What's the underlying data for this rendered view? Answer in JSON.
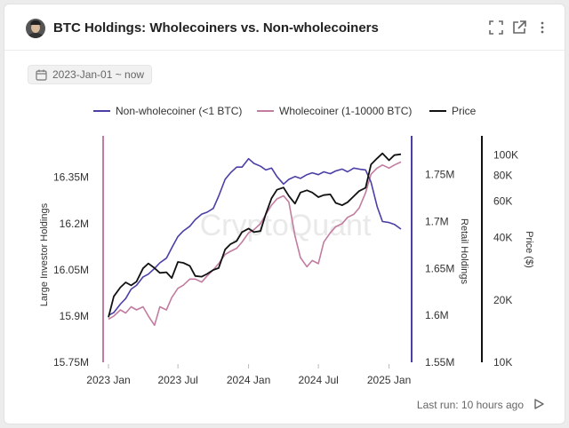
{
  "header": {
    "title": "BTC Holdings: Wholecoiners vs. Non-wholecoiners",
    "icons": [
      "expand-icon",
      "open-external-icon",
      "more-vertical-icon"
    ]
  },
  "filter": {
    "date_range": "2023-Jan-01 ~ now"
  },
  "footer": {
    "last_run": "Last run: 10 hours ago"
  },
  "colors": {
    "non_wholecoiner": "#4a3fa6",
    "wholecoiner": "#c27ca0",
    "price": "#111111"
  },
  "chart_data": {
    "type": "line",
    "legend": {
      "placement": "top",
      "entries": [
        "Non-wholecoiner (<1 BTC)",
        "Wholecoiner (1-10000 BTC)",
        "Price"
      ]
    },
    "watermark": "CryptoQuant",
    "x_ticks": [
      "2023 Jan",
      "2023 Jul",
      "2024 Jan",
      "2024 Jul",
      "2025 Jan"
    ],
    "x_range": [
      "2023-01-01",
      "2025-02-15"
    ],
    "axes": {
      "left": {
        "label": "Large Investor Holdings",
        "range": [
          15.75,
          16.45
        ],
        "unit": "M",
        "ticks": [
          "15.75M",
          "15.9M",
          "16.05M",
          "16.2M",
          "16.35M"
        ]
      },
      "right1": {
        "label": "Retail Holdings",
        "range": [
          1.55,
          1.78
        ],
        "unit": "M",
        "ticks": [
          "1.55M",
          "1.6M",
          "1.65M",
          "1.7M",
          "1.75M"
        ]
      },
      "right2": {
        "label": "Price ($)",
        "scale": "log",
        "range": [
          10000,
          110000
        ],
        "ticks": [
          "10K",
          "20K",
          "40K",
          "60K",
          "80K",
          "100K"
        ]
      }
    },
    "series": [
      {
        "name": "Non-wholecoiner (<1 BTC)",
        "axis": "right1",
        "points": [
          [
            "2023-01-01",
            1.6
          ],
          [
            "2023-01-15",
            1.603
          ],
          [
            "2023-02-01",
            1.612
          ],
          [
            "2023-02-15",
            1.618
          ],
          [
            "2023-03-01",
            1.628
          ],
          [
            "2023-03-15",
            1.632
          ],
          [
            "2023-04-01",
            1.641
          ],
          [
            "2023-04-15",
            1.644
          ],
          [
            "2023-05-01",
            1.65
          ],
          [
            "2023-05-15",
            1.656
          ],
          [
            "2023-06-01",
            1.661
          ],
          [
            "2023-06-15",
            1.672
          ],
          [
            "2023-07-01",
            1.684
          ],
          [
            "2023-07-15",
            1.69
          ],
          [
            "2023-08-01",
            1.695
          ],
          [
            "2023-08-15",
            1.702
          ],
          [
            "2023-09-01",
            1.708
          ],
          [
            "2023-09-15",
            1.71
          ],
          [
            "2023-10-01",
            1.714
          ],
          [
            "2023-10-15",
            1.727
          ],
          [
            "2023-11-01",
            1.745
          ],
          [
            "2023-11-15",
            1.752
          ],
          [
            "2023-12-01",
            1.758
          ],
          [
            "2023-12-15",
            1.758
          ],
          [
            "2024-01-01",
            1.767
          ],
          [
            "2024-01-15",
            1.762
          ],
          [
            "2024-02-01",
            1.759
          ],
          [
            "2024-02-15",
            1.755
          ],
          [
            "2024-03-01",
            1.757
          ],
          [
            "2024-03-15",
            1.748
          ],
          [
            "2024-04-01",
            1.74
          ],
          [
            "2024-04-15",
            1.745
          ],
          [
            "2024-05-01",
            1.748
          ],
          [
            "2024-05-15",
            1.746
          ],
          [
            "2024-06-01",
            1.75
          ],
          [
            "2024-06-15",
            1.752
          ],
          [
            "2024-07-01",
            1.75
          ],
          [
            "2024-07-15",
            1.753
          ],
          [
            "2024-08-01",
            1.751
          ],
          [
            "2024-08-15",
            1.754
          ],
          [
            "2024-09-01",
            1.756
          ],
          [
            "2024-09-15",
            1.753
          ],
          [
            "2024-10-01",
            1.757
          ],
          [
            "2024-10-15",
            1.756
          ],
          [
            "2024-11-01",
            1.755
          ],
          [
            "2024-11-15",
            1.742
          ],
          [
            "2024-12-01",
            1.716
          ],
          [
            "2024-12-15",
            1.7
          ],
          [
            "2025-01-01",
            1.699
          ],
          [
            "2025-01-15",
            1.697
          ],
          [
            "2025-02-01",
            1.692
          ]
        ]
      },
      {
        "name": "Wholecoiner (1-10000 BTC)",
        "axis": "left",
        "points": [
          [
            "2023-01-01",
            15.89
          ],
          [
            "2023-01-15",
            15.9
          ],
          [
            "2023-02-01",
            15.92
          ],
          [
            "2023-02-15",
            15.91
          ],
          [
            "2023-03-01",
            15.93
          ],
          [
            "2023-03-15",
            15.92
          ],
          [
            "2023-04-01",
            15.93
          ],
          [
            "2023-04-15",
            15.9
          ],
          [
            "2023-05-01",
            15.87
          ],
          [
            "2023-05-15",
            15.93
          ],
          [
            "2023-06-01",
            15.92
          ],
          [
            "2023-06-15",
            15.96
          ],
          [
            "2023-07-01",
            15.99
          ],
          [
            "2023-07-15",
            16.0
          ],
          [
            "2023-08-01",
            16.02
          ],
          [
            "2023-08-15",
            16.02
          ],
          [
            "2023-09-01",
            16.01
          ],
          [
            "2023-09-15",
            16.03
          ],
          [
            "2023-10-01",
            16.05
          ],
          [
            "2023-10-15",
            16.07
          ],
          [
            "2023-11-01",
            16.1
          ],
          [
            "2023-11-15",
            16.11
          ],
          [
            "2023-12-01",
            16.12
          ],
          [
            "2023-12-15",
            16.14
          ],
          [
            "2024-01-01",
            16.17
          ],
          [
            "2024-01-15",
            16.18
          ],
          [
            "2024-02-01",
            16.2
          ],
          [
            "2024-02-15",
            16.23
          ],
          [
            "2024-03-01",
            16.26
          ],
          [
            "2024-03-15",
            16.28
          ],
          [
            "2024-04-01",
            16.29
          ],
          [
            "2024-04-15",
            16.27
          ],
          [
            "2024-05-01",
            16.16
          ],
          [
            "2024-05-15",
            16.09
          ],
          [
            "2024-06-01",
            16.06
          ],
          [
            "2024-06-15",
            16.08
          ],
          [
            "2024-07-01",
            16.07
          ],
          [
            "2024-07-15",
            16.14
          ],
          [
            "2024-08-01",
            16.17
          ],
          [
            "2024-08-15",
            16.19
          ],
          [
            "2024-09-01",
            16.2
          ],
          [
            "2024-09-15",
            16.22
          ],
          [
            "2024-10-01",
            16.23
          ],
          [
            "2024-10-15",
            16.25
          ],
          [
            "2024-11-01",
            16.3
          ],
          [
            "2024-11-15",
            16.36
          ],
          [
            "2024-12-01",
            16.38
          ],
          [
            "2024-12-15",
            16.39
          ],
          [
            "2025-01-01",
            16.38
          ],
          [
            "2025-01-15",
            16.39
          ],
          [
            "2025-02-01",
            16.4
          ]
        ]
      },
      {
        "name": "Price",
        "axis": "right2",
        "points": [
          [
            "2023-01-01",
            16500
          ],
          [
            "2023-01-15",
            20800
          ],
          [
            "2023-02-01",
            23000
          ],
          [
            "2023-02-15",
            24300
          ],
          [
            "2023-03-01",
            23500
          ],
          [
            "2023-03-15",
            24500
          ],
          [
            "2023-04-01",
            28400
          ],
          [
            "2023-04-15",
            30000
          ],
          [
            "2023-05-01",
            28500
          ],
          [
            "2023-05-15",
            27000
          ],
          [
            "2023-06-01",
            27200
          ],
          [
            "2023-06-15",
            25500
          ],
          [
            "2023-07-01",
            30500
          ],
          [
            "2023-07-15",
            30200
          ],
          [
            "2023-08-01",
            29200
          ],
          [
            "2023-08-15",
            26100
          ],
          [
            "2023-09-01",
            25900
          ],
          [
            "2023-09-15",
            26700
          ],
          [
            "2023-10-01",
            27900
          ],
          [
            "2023-10-15",
            28500
          ],
          [
            "2023-11-01",
            35000
          ],
          [
            "2023-11-15",
            37200
          ],
          [
            "2023-12-01",
            38500
          ],
          [
            "2023-12-15",
            42500
          ],
          [
            "2024-01-01",
            44200
          ],
          [
            "2024-01-15",
            42500
          ],
          [
            "2024-02-01",
            43000
          ],
          [
            "2024-02-15",
            52000
          ],
          [
            "2024-03-01",
            62000
          ],
          [
            "2024-03-15",
            68000
          ],
          [
            "2024-04-01",
            69700
          ],
          [
            "2024-04-15",
            63500
          ],
          [
            "2024-05-01",
            58300
          ],
          [
            "2024-05-15",
            66000
          ],
          [
            "2024-06-01",
            67600
          ],
          [
            "2024-06-15",
            66000
          ],
          [
            "2024-07-01",
            62700
          ],
          [
            "2024-07-15",
            64100
          ],
          [
            "2024-08-01",
            64600
          ],
          [
            "2024-08-15",
            58800
          ],
          [
            "2024-09-01",
            57300
          ],
          [
            "2024-09-15",
            59200
          ],
          [
            "2024-10-01",
            63300
          ],
          [
            "2024-10-15",
            67000
          ],
          [
            "2024-11-01",
            69500
          ],
          [
            "2024-11-15",
            90000
          ],
          [
            "2024-12-01",
            96500
          ],
          [
            "2024-12-15",
            102000
          ],
          [
            "2025-01-01",
            94400
          ],
          [
            "2025-01-15",
            100000
          ],
          [
            "2025-02-01",
            101000
          ]
        ]
      }
    ]
  }
}
